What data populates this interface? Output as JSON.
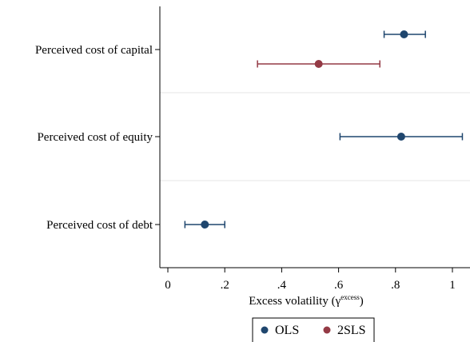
{
  "chart_data": {
    "type": "scatter",
    "subtype": "coefficient-plot",
    "orientation": "horizontal",
    "categories": [
      "Perceived cost of capital",
      "Perceived cost of equity",
      "Perceived cost of debt"
    ],
    "xlabel": {
      "prefix": "Excess volatility (γ",
      "superscript": "excess",
      "suffix": ")"
    },
    "xlim": [
      -0.03,
      1.06
    ],
    "xticks": [
      {
        "value": 0,
        "label": "0"
      },
      {
        "value": 0.2,
        "label": ".2"
      },
      {
        "value": 0.4,
        "label": ".4"
      },
      {
        "value": 0.6,
        "label": ".6"
      },
      {
        "value": 0.8,
        "label": ".8"
      },
      {
        "value": 1.0,
        "label": "1"
      }
    ],
    "grid": {
      "horizontal_separators": true,
      "color": "#e6e6e6"
    },
    "legend": {
      "placement": "bottom-center",
      "border": true
    },
    "series": [
      {
        "name": "OLS",
        "color": "#1f466e",
        "points": [
          {
            "category": "Perceived cost of capital",
            "estimate": 0.83,
            "ci": [
              0.76,
              0.905
            ]
          },
          {
            "category": "Perceived cost of equity",
            "estimate": 0.82,
            "ci": [
              0.605,
              1.035
            ]
          },
          {
            "category": "Perceived cost of debt",
            "estimate": 0.13,
            "ci": [
              0.06,
              0.2
            ]
          }
        ]
      },
      {
        "name": "2SLS",
        "color": "#943a45",
        "points": [
          {
            "category": "Perceived cost of capital",
            "estimate": 0.53,
            "ci": [
              0.315,
              0.745
            ]
          }
        ]
      }
    ]
  }
}
